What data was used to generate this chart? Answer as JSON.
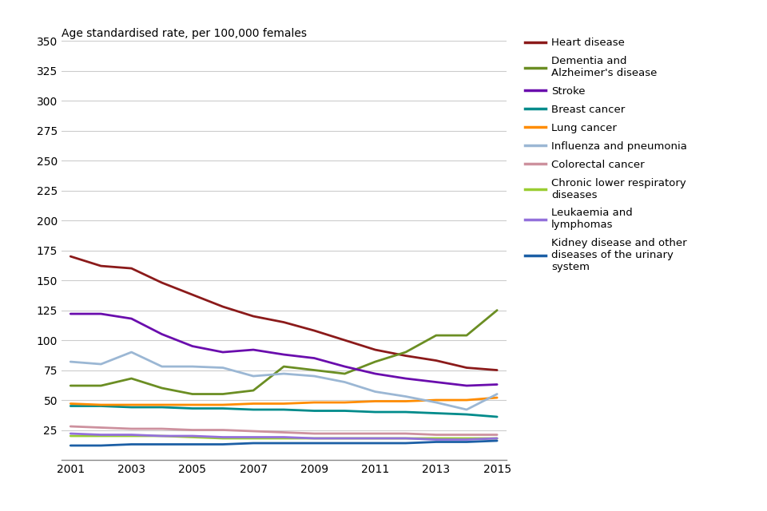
{
  "years": [
    2001,
    2002,
    2003,
    2004,
    2005,
    2006,
    2007,
    2008,
    2009,
    2010,
    2011,
    2012,
    2013,
    2014,
    2015
  ],
  "series": [
    {
      "label": "Heart disease",
      "color": "#8B1A1A",
      "values": [
        170,
        162,
        160,
        148,
        138,
        128,
        120,
        115,
        108,
        100,
        92,
        87,
        83,
        77,
        75
      ]
    },
    {
      "label": "Dementia and\nAlzheimer's disease",
      "color": "#6B8E23",
      "values": [
        62,
        62,
        68,
        60,
        55,
        55,
        58,
        78,
        75,
        72,
        82,
        90,
        104,
        104,
        125
      ]
    },
    {
      "label": "Stroke",
      "color": "#6A0DAD",
      "values": [
        122,
        122,
        118,
        105,
        95,
        90,
        92,
        88,
        85,
        78,
        72,
        68,
        65,
        62,
        63
      ]
    },
    {
      "label": "Breast cancer",
      "color": "#008B8B",
      "values": [
        45,
        45,
        44,
        44,
        43,
        43,
        42,
        42,
        41,
        41,
        40,
        40,
        39,
        38,
        36
      ]
    },
    {
      "label": "Lung cancer",
      "color": "#FF8C00",
      "values": [
        47,
        46,
        46,
        46,
        46,
        46,
        47,
        47,
        48,
        48,
        49,
        49,
        50,
        50,
        52
      ]
    },
    {
      "label": "Influenza and pneumonia",
      "color": "#9BB7D4",
      "values": [
        82,
        80,
        90,
        78,
        78,
        77,
        70,
        72,
        70,
        65,
        57,
        53,
        48,
        42,
        55
      ]
    },
    {
      "label": "Colorectal cancer",
      "color": "#CD919E",
      "values": [
        28,
        27,
        26,
        26,
        25,
        25,
        24,
        23,
        22,
        22,
        22,
        22,
        21,
        21,
        21
      ]
    },
    {
      "label": "Chronic lower respiratory\ndiseases",
      "color": "#9ACD32",
      "values": [
        20,
        20,
        20,
        20,
        19,
        18,
        18,
        18,
        18,
        18,
        18,
        18,
        18,
        18,
        18
      ]
    },
    {
      "label": "Leukaemia and\nlymphomas",
      "color": "#9370DB",
      "values": [
        22,
        21,
        21,
        20,
        20,
        19,
        19,
        19,
        18,
        18,
        18,
        18,
        17,
        17,
        18
      ]
    },
    {
      "label": "Kidney disease and other\ndiseases of the urinary\nsystem",
      "color": "#1C5FA5",
      "values": [
        12,
        12,
        13,
        13,
        13,
        13,
        14,
        14,
        14,
        14,
        14,
        14,
        15,
        15,
        16
      ]
    }
  ],
  "ylabel": "Age standardised rate, per 100,000 females",
  "ylim": [
    0,
    350
  ],
  "yticks": [
    0,
    25,
    50,
    75,
    100,
    125,
    150,
    175,
    200,
    225,
    250,
    275,
    300,
    325,
    350
  ],
  "ytick_labels": [
    "",
    "25",
    "50",
    "75",
    "100",
    "125",
    "150",
    "175",
    "200",
    "225",
    "250",
    "275",
    "300",
    "325",
    "350"
  ],
  "xlim": [
    2001,
    2015
  ],
  "xticks": [
    2001,
    2003,
    2005,
    2007,
    2009,
    2011,
    2013,
    2015
  ],
  "bg_color": "#ffffff",
  "grid_color": "#cccccc",
  "figsize": [
    9.6,
    6.4
  ],
  "dpi": 100
}
